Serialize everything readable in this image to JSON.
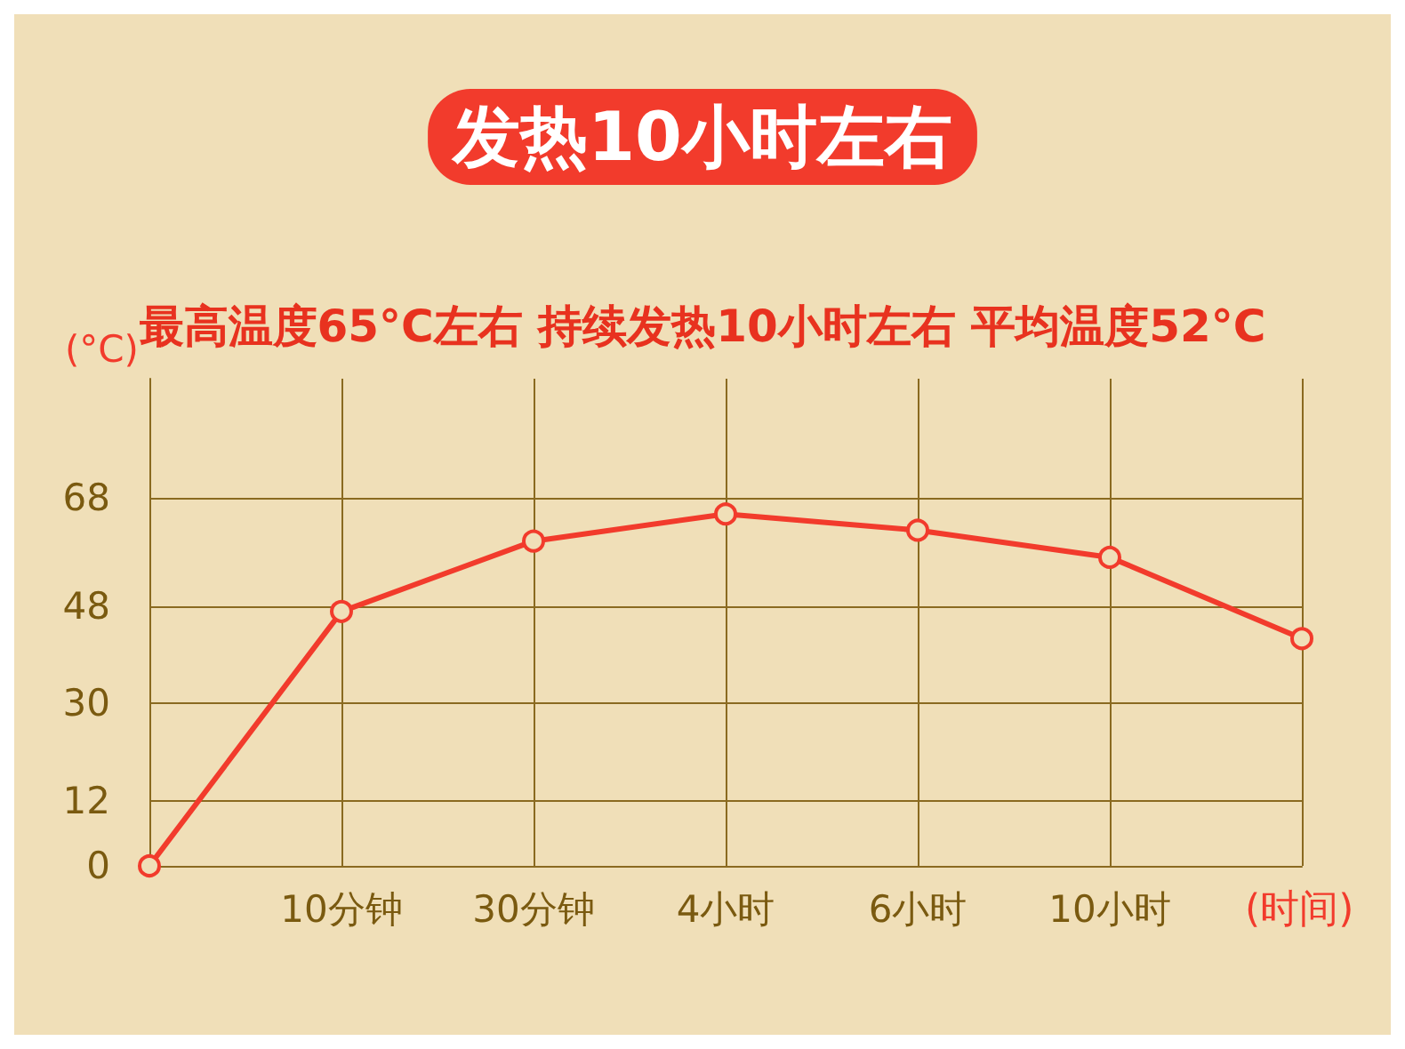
{
  "chart_data": {
    "type": "line",
    "title": "发热10小时左右",
    "subtitle": "最高温度65°C左右 持续发热10小时左右 平均温度52°C",
    "ylabel": "(°C)",
    "xlabel": "(时间)",
    "categories": [
      "0",
      "10分钟",
      "30分钟",
      "4小时",
      "6小时",
      "10小时",
      null
    ],
    "series": [
      {
        "color": "#f23b2c",
        "values": [
          0,
          47,
          60,
          65,
          62,
          57,
          42
        ]
      }
    ],
    "ylim": [
      0,
      90
    ],
    "yticks": [
      0,
      12,
      30,
      48,
      68
    ],
    "grid": true,
    "marker": "circle",
    "line_style": "solid"
  }
}
